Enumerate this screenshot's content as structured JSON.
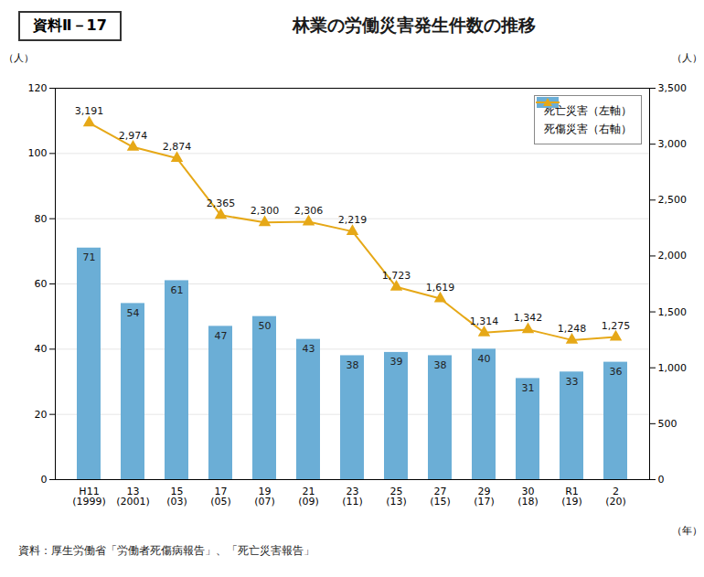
{
  "chart_data": {
    "type": "bar",
    "title": "林業の労働災害発生件数の推移",
    "annotations": [
      "資料Ⅱ－17"
    ],
    "caption": "資料：厚生労働省「労働者死傷病報告」、「死亡災害報告」",
    "xlabel": "（年）",
    "ylabel": "（人）",
    "y2label": "（人）",
    "categories": [
      "H11\n(1999)",
      "13\n(2001)",
      "15\n(03)",
      "17\n(05)",
      "19\n(07)",
      "21\n(09)",
      "23\n(11)",
      "25\n(13)",
      "27\n(15)",
      "29\n(17)",
      "30\n(18)",
      "R1\n(19)",
      "2\n(20)"
    ],
    "series": [
      {
        "name": "死亡災害（左軸）",
        "type": "bar",
        "color": "#6baed6",
        "values": [
          71,
          54,
          61,
          47,
          50,
          43,
          38,
          39,
          38,
          40,
          31,
          33,
          36
        ]
      },
      {
        "name": "死傷災害（右軸）",
        "type": "line",
        "axis": "y2",
        "color": "#e6a817",
        "marker": "triangle",
        "values": [
          3191,
          2974,
          2874,
          2365,
          2300,
          2306,
          2219,
          1723,
          1619,
          1314,
          1342,
          1248,
          1275
        ],
        "value_labels": [
          "3,191",
          "2,974",
          "2,874",
          "2,365",
          "2,300",
          "2,306",
          "2,219",
          "1,723",
          "1,619",
          "1,314",
          "1,342",
          "1,248",
          "1,275"
        ]
      }
    ],
    "ylim": [
      0,
      120
    ],
    "yticks": [
      0,
      20,
      40,
      60,
      80,
      100,
      120
    ],
    "y2lim": [
      0,
      3500
    ],
    "y2ticks": [
      0,
      500,
      1000,
      1500,
      2000,
      2500,
      3000,
      3500
    ],
    "grid": true,
    "legend": "upper right",
    "data_labels": true
  }
}
